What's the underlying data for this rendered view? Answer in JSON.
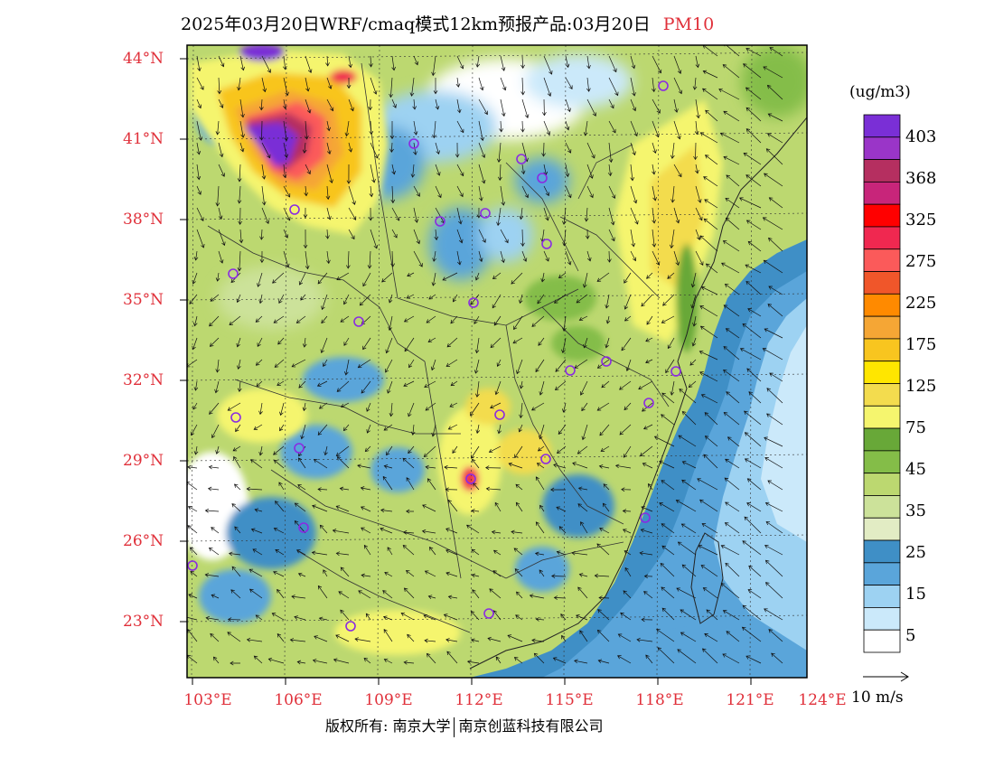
{
  "title": {
    "main": "2025年03月20日WRF/cmaq模式12km预报产品:03月20日",
    "pollutant": "PM10"
  },
  "map": {
    "lat_labels": [
      "44°N",
      "41°N",
      "38°N",
      "35°N",
      "32°N",
      "29°N",
      "26°N",
      "23°N"
    ],
    "lon_labels": [
      "103°E",
      "106°E",
      "109°E",
      "112°E",
      "115°E",
      "118°E",
      "121°E",
      "124°E"
    ]
  },
  "colorbar": {
    "unit": "(ug/m3)",
    "labels": [
      "403",
      "368",
      "325",
      "275",
      "225",
      "175",
      "125",
      "75",
      "45",
      "35",
      "25",
      "15",
      "5"
    ],
    "colors": [
      "#7a2fd6",
      "#9a35c8",
      "#b52f60",
      "#c8257a",
      "#ff0000",
      "#f02850",
      "#fb5a5a",
      "#f0562a",
      "#ff8a00",
      "#f5a635",
      "#f8c51f",
      "#ffe600",
      "#f3dc4e",
      "#f5f56e",
      "#68a838",
      "#84bd48",
      "#bcd870",
      "#cce29a",
      "#e2ecc4",
      "#3f8fc6",
      "#5aa5da",
      "#9dd2f2",
      "#cbe9fa",
      "#ffffff"
    ]
  },
  "wind_reference": {
    "label": "10 m/s"
  },
  "copyright": {
    "left": "版权所有: 南京大学",
    "right": "南京创蓝科技有限公司"
  }
}
